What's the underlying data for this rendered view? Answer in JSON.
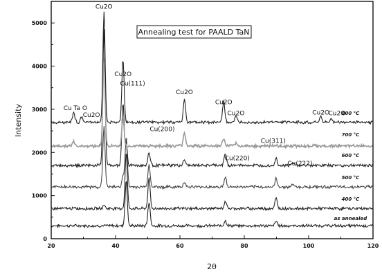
{
  "chart_data": {
    "type": "line",
    "title": "Annealing test for PAALD TaN",
    "xlabel": "2θ",
    "ylabel": "Intensity",
    "xlim": [
      20,
      120
    ],
    "ylim": [
      0,
      5500
    ],
    "xticks": [
      20,
      40,
      60,
      80,
      100,
      120
    ],
    "yticks": [
      0,
      1000,
      2000,
      3000,
      4000,
      5000
    ],
    "xtick_labels": [
      "20",
      "40",
      "60",
      "80",
      "100",
      "120"
    ],
    "ytick_labels": [
      "0",
      "1000",
      "2000",
      "3000",
      "4000",
      "5000"
    ],
    "grid": false,
    "series": [
      {
        "name": "as annealed",
        "baseline": 300,
        "color": "#222222",
        "peaks": [
          [
            43.3,
            1050
          ],
          [
            50.4,
            560
          ],
          [
            74.1,
            130
          ],
          [
            89.9,
            110
          ]
        ]
      },
      {
        "name": "400 °C",
        "baseline": 700,
        "color": "#222222",
        "peaks": [
          [
            36.4,
            80
          ],
          [
            43.3,
            1300
          ],
          [
            50.4,
            700
          ],
          [
            74.1,
            170
          ],
          [
            89.9,
            240
          ]
        ]
      },
      {
        "name": "500 °C",
        "baseline": 1200,
        "color": "#444444",
        "peaks": [
          [
            36.4,
            1400
          ],
          [
            42.3,
            250
          ],
          [
            43.3,
            1150
          ],
          [
            50.4,
            520
          ],
          [
            61.4,
            130
          ],
          [
            74.1,
            220
          ],
          [
            89.9,
            190
          ],
          [
            95.1,
            70
          ]
        ]
      },
      {
        "name": "600 °C",
        "baseline": 1700,
        "color": "#222222",
        "peaks": [
          [
            36.4,
            3150
          ],
          [
            42.3,
            1450
          ],
          [
            43.3,
            500
          ],
          [
            50.4,
            300
          ],
          [
            61.4,
            130
          ],
          [
            74.1,
            280
          ],
          [
            89.9,
            160
          ],
          [
            95.1,
            60
          ]
        ]
      },
      {
        "name": "700 °C",
        "baseline": 2150,
        "color": "#999999",
        "peaks": [
          [
            27.0,
            90
          ],
          [
            36.4,
            2000
          ],
          [
            42.3,
            650
          ],
          [
            61.4,
            320
          ],
          [
            73.6,
            170
          ],
          [
            77.4,
            60
          ]
        ]
      },
      {
        "name": "800 °C",
        "baseline": 2700,
        "color": "#222222",
        "peaks": [
          [
            27.0,
            230
          ],
          [
            29.5,
            130
          ],
          [
            36.4,
            2550
          ],
          [
            42.3,
            1450
          ],
          [
            61.4,
            550
          ],
          [
            73.6,
            480
          ],
          [
            77.4,
            120
          ],
          [
            103.8,
            120
          ],
          [
            107.0,
            70
          ]
        ]
      }
    ],
    "peak_labels": [
      {
        "text": "Cu2O",
        "x": 36.4,
        "y": 5330
      },
      {
        "text": "Cu2O",
        "x": 42.3,
        "y": 3770
      },
      {
        "text": "Cu(111)",
        "x": 45.3,
        "y": 3550
      },
      {
        "text": "Cu2O",
        "x": 61.4,
        "y": 3350
      },
      {
        "text": "Cu2O",
        "x": 73.6,
        "y": 3120
      },
      {
        "text": "Cu2O",
        "x": 77.4,
        "y": 2860
      },
      {
        "text": "Cu Ta O",
        "x": 27.5,
        "y": 2980
      },
      {
        "text": "Cu2O",
        "x": 32.5,
        "y": 2820
      },
      {
        "text": "Cu2O",
        "x": 103.8,
        "y": 2880
      },
      {
        "text": "Cu2O",
        "x": 108.8,
        "y": 2860
      },
      {
        "text": "Cu(200)",
        "x": 54.5,
        "y": 2490
      },
      {
        "text": "Cu(311)",
        "x": 89.0,
        "y": 2220
      },
      {
        "text": "Cu(220)",
        "x": 77.8,
        "y": 1820
      },
      {
        "text": "Cu(222)",
        "x": 97.3,
        "y": 1700
      }
    ],
    "curve_labels": [
      {
        "text": "800 °C",
        "x": 113.0,
        "y": 2870
      },
      {
        "text": "700 °C",
        "x": 113.0,
        "y": 2370
      },
      {
        "text": "600 °C",
        "x": 113.0,
        "y": 1890
      },
      {
        "text": "500 °C",
        "x": 113.0,
        "y": 1380
      },
      {
        "text": "400 °C",
        "x": 113.0,
        "y": 880
      },
      {
        "text": "as annealed",
        "x": 113.0,
        "y": 430
      }
    ]
  }
}
